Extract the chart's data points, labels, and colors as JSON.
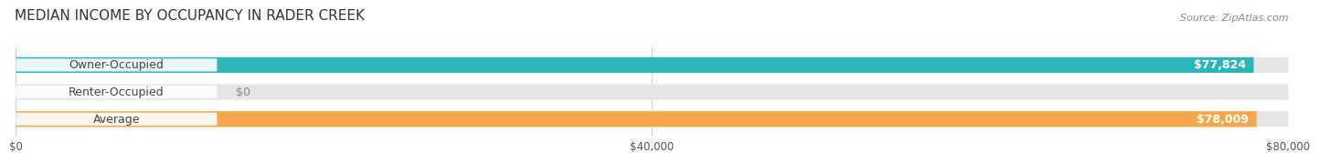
{
  "title": "MEDIAN INCOME BY OCCUPANCY IN RADER CREEK",
  "source": "Source: ZipAtlas.com",
  "categories": [
    "Owner-Occupied",
    "Renter-Occupied",
    "Average"
  ],
  "values": [
    77824,
    0,
    78009
  ],
  "bar_colors": [
    "#2bb5b8",
    "#b89fcc",
    "#f5a84b"
  ],
  "value_labels": [
    "$77,824",
    "$0",
    "$78,009"
  ],
  "xlim": [
    0,
    80000
  ],
  "xticks": [
    0,
    40000,
    80000
  ],
  "xtick_labels": [
    "$0",
    "$40,000",
    "$80,000"
  ],
  "title_fontsize": 11,
  "source_fontsize": 8,
  "label_fontsize": 9,
  "value_fontsize": 9,
  "bar_height": 0.58,
  "background_color": "#ffffff"
}
